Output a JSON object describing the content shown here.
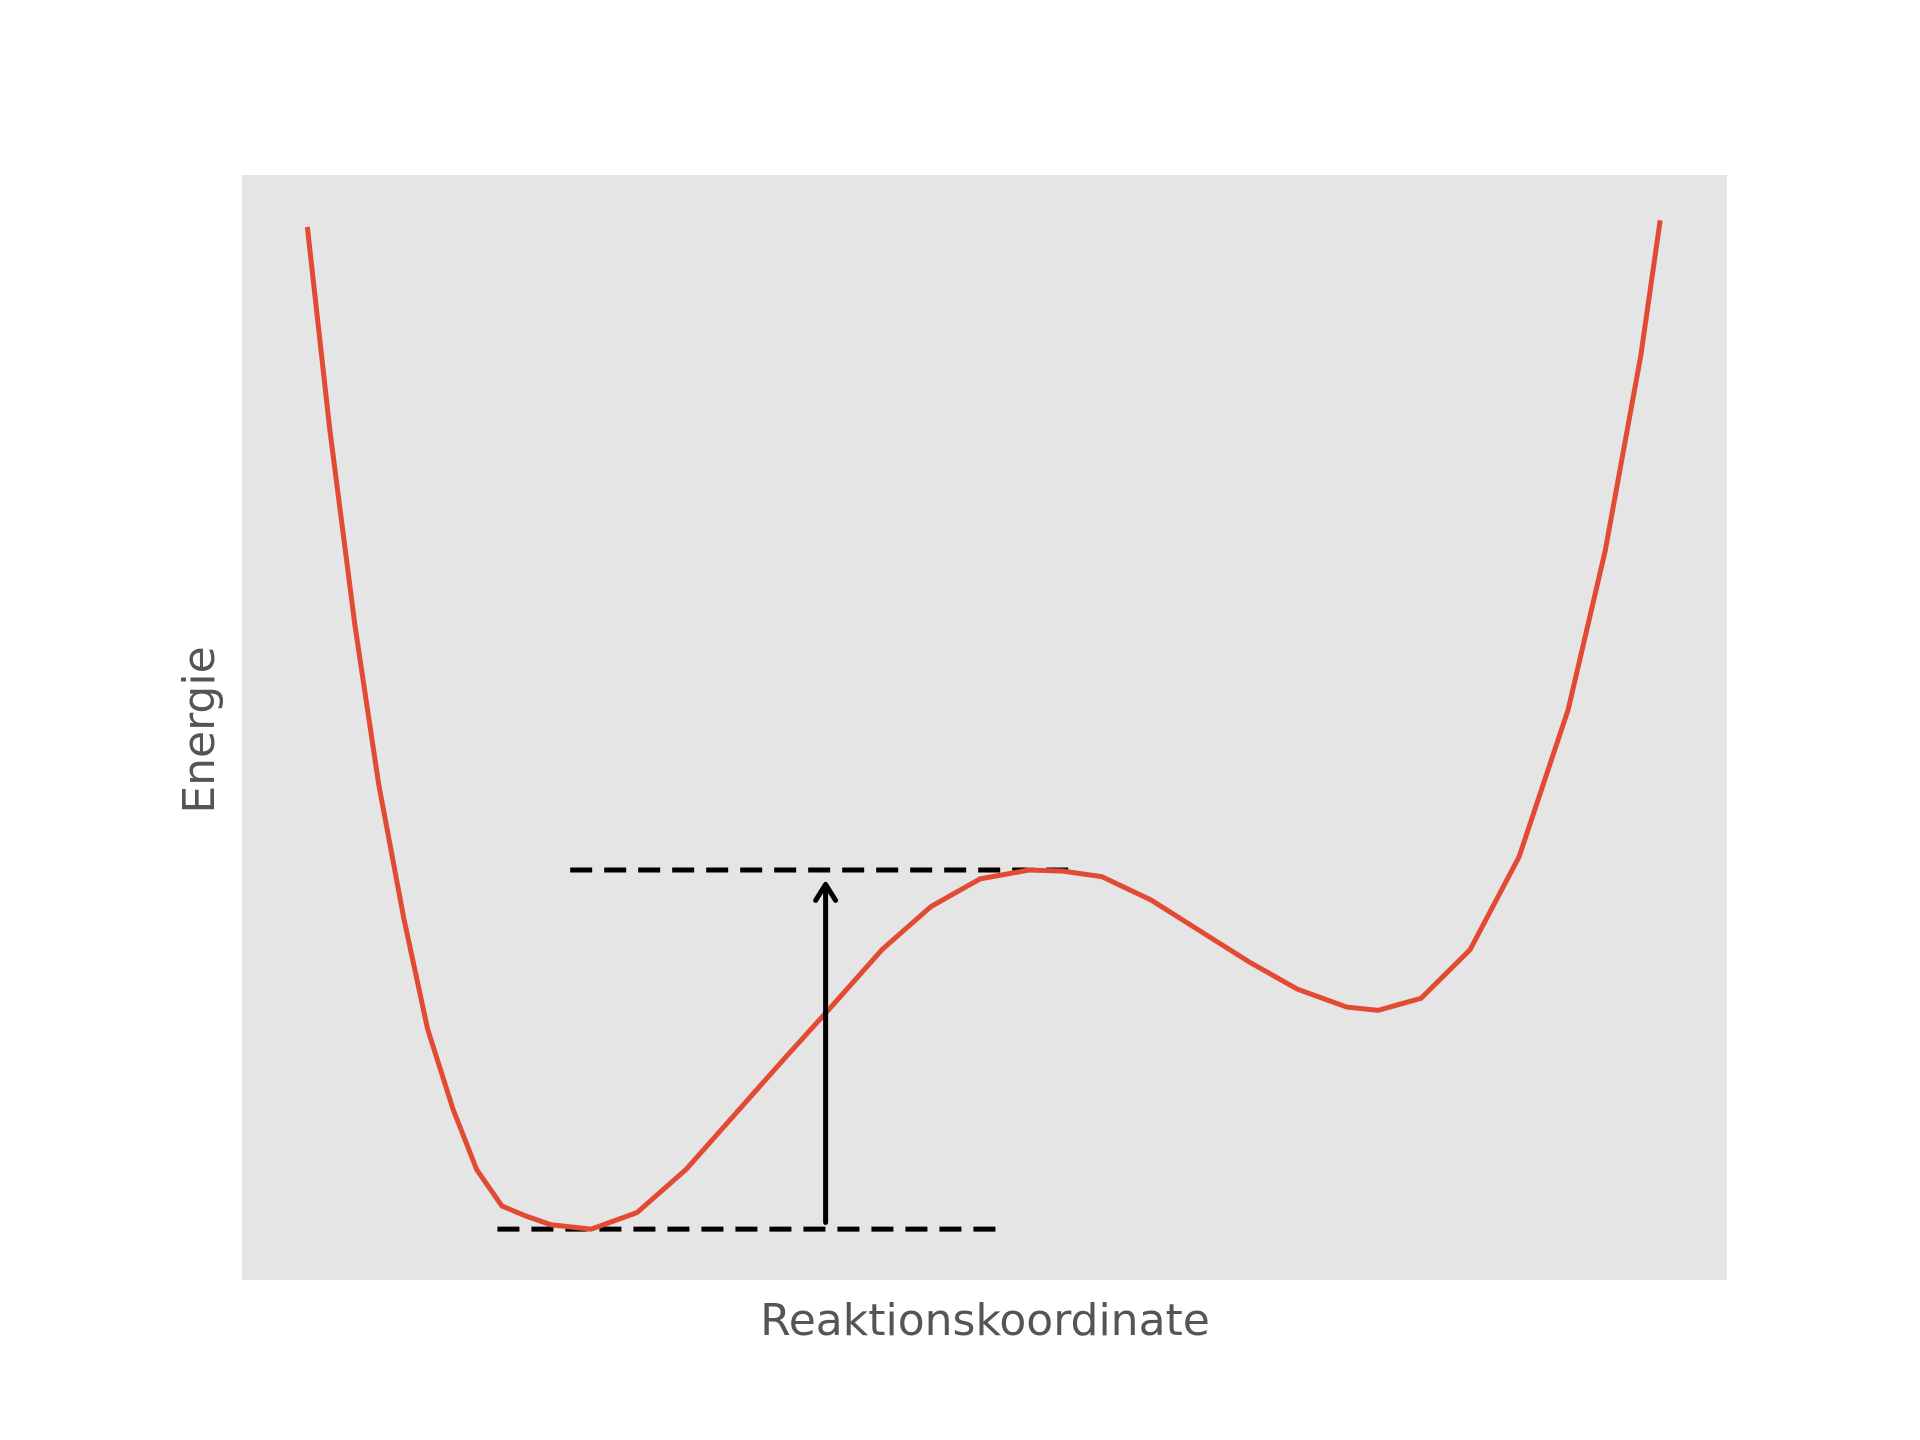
{
  "chart_data": {
    "type": "line",
    "xlabel": "Reaktionskoordinate",
    "ylabel": "Energie",
    "xlim": [
      0,
      100
    ],
    "ylim": [
      0,
      100
    ],
    "background": "#e5e5e5",
    "x": [
      4.4,
      5.9,
      7.6,
      9.2,
      10.9,
      12.5,
      14.2,
      15.8,
      17.5,
      19.1,
      20.8,
      23.5,
      26.6,
      29.9,
      33.2,
      36.5,
      39.8,
      43.1,
      46.4,
      49.7,
      53.0,
      55.3,
      57.9,
      61.2,
      64.5,
      67.8,
      71.1,
      74.4,
      76.5,
      79.4,
      82.7,
      86.0,
      89.3,
      91.8,
      94.2,
      95.5
    ],
    "series": [
      {
        "color": "#e24a33",
        "values": [
          95.3,
          77.1,
          59.3,
          44.9,
          32.7,
          22.7,
          15.5,
          10.0,
          6.7,
          5.8,
          5.0,
          4.6,
          6.1,
          10.0,
          15.0,
          20.0,
          24.9,
          29.9,
          33.8,
          36.3,
          37.1,
          37.0,
          36.5,
          34.4,
          31.6,
          28.8,
          26.3,
          24.7,
          24.4,
          25.5,
          29.9,
          38.3,
          51.6,
          66.0,
          83.7,
          95.9
        ]
      }
    ],
    "hlines": [
      {
        "y": 4.6,
        "x0": 17.2,
        "x1": 51.5
      },
      {
        "y": 37.1,
        "x0": 22.1,
        "x1": 56.4
      }
    ],
    "arrow": {
      "x": 39.3,
      "y0": 5.2,
      "y1": 35.8
    }
  }
}
